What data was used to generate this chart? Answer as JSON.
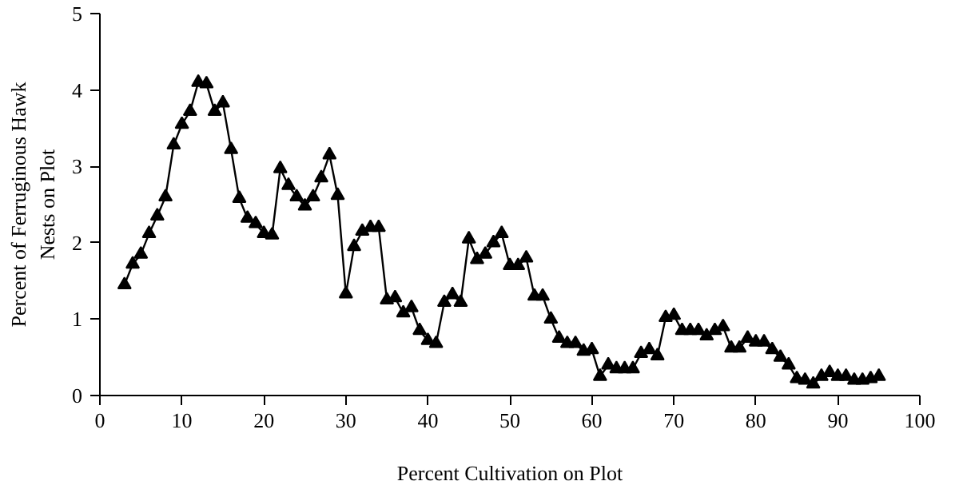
{
  "chart_data": {
    "type": "line",
    "xlabel": "Percent Cultivation on Plot",
    "ylabel": "Percent of Ferruginous Hawk\nNests on Plot",
    "xlim": [
      0,
      100
    ],
    "xticks": [
      0,
      10,
      20,
      30,
      40,
      50,
      60,
      70,
      80,
      90,
      100
    ],
    "ylim": [
      0,
      5
    ],
    "yticks": [
      0,
      1,
      2,
      3,
      4,
      5
    ],
    "grid": false,
    "marker": "triangle",
    "line_style": "solid",
    "series": [
      {
        "color": "#000000",
        "x": [
          3,
          4,
          5,
          6,
          7,
          8,
          9,
          10,
          11,
          12,
          13,
          14,
          15,
          16,
          17,
          18,
          19,
          20,
          21,
          22,
          23,
          24,
          25,
          26,
          27,
          28,
          29,
          30,
          31,
          32,
          33,
          34,
          35,
          36,
          37,
          38,
          39,
          40,
          41,
          42,
          43,
          44,
          45,
          46,
          47,
          48,
          49,
          50,
          51,
          52,
          53,
          54,
          55,
          56,
          57,
          58,
          59,
          60,
          61,
          62,
          63,
          64,
          65,
          66,
          67,
          68,
          69,
          70,
          71,
          72,
          73,
          74,
          75,
          76,
          77,
          78,
          79,
          80,
          81,
          82,
          83,
          84,
          85,
          86,
          87,
          88,
          89,
          90,
          91,
          92,
          93,
          94,
          95
        ],
        "values": [
          1.45,
          1.72,
          1.85,
          2.12,
          2.35,
          2.6,
          3.28,
          3.55,
          3.72,
          4.1,
          4.08,
          3.72,
          3.83,
          3.22,
          2.58,
          2.32,
          2.25,
          2.12,
          2.1,
          2.97,
          2.75,
          2.6,
          2.48,
          2.6,
          2.85,
          3.15,
          2.62,
          1.33,
          1.95,
          2.15,
          2.2,
          2.2,
          1.25,
          1.28,
          1.08,
          1.15,
          0.85,
          0.72,
          0.68,
          1.22,
          1.32,
          1.22,
          2.05,
          1.78,
          1.85,
          2.0,
          2.12,
          1.7,
          1.7,
          1.8,
          1.3,
          1.3,
          1.0,
          0.75,
          0.68,
          0.68,
          0.58,
          0.6,
          0.25,
          0.4,
          0.35,
          0.35,
          0.35,
          0.55,
          0.6,
          0.52,
          1.02,
          1.05,
          0.85,
          0.85,
          0.85,
          0.78,
          0.85,
          0.9,
          0.62,
          0.62,
          0.75,
          0.7,
          0.7,
          0.6,
          0.5,
          0.4,
          0.22,
          0.2,
          0.15,
          0.25,
          0.3,
          0.25,
          0.25,
          0.2,
          0.2,
          0.22,
          0.25
        ]
      }
    ]
  }
}
